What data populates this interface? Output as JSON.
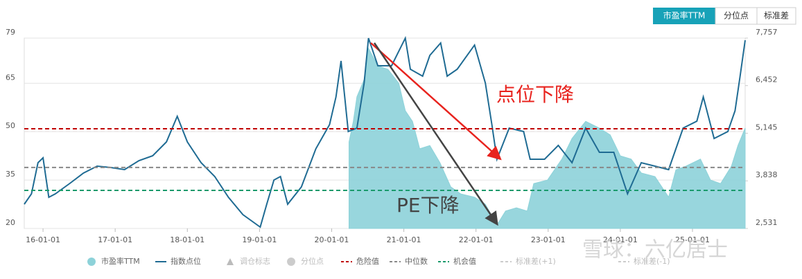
{
  "buttons": [
    "市盈率TTM",
    "分位点",
    "标准差"
  ],
  "watermark": "雪球：六亿居士",
  "chart_data": {
    "type": "line",
    "xlim": [
      2015.74,
      2025.73
    ],
    "xticks": [
      {
        "value": 2016,
        "label": "16-01-01"
      },
      {
        "value": 2017,
        "label": "17-01-01"
      },
      {
        "value": 2018,
        "label": "18-01-01"
      },
      {
        "value": 2019,
        "label": "19-01-01"
      },
      {
        "value": 2020,
        "label": "20-01-01"
      },
      {
        "value": 2021,
        "label": "21-01-01"
      },
      {
        "value": 2022,
        "label": "22-01-01"
      },
      {
        "value": 2023,
        "label": "23-01-01"
      },
      {
        "value": 2024,
        "label": "24-01-01"
      },
      {
        "value": 2025,
        "label": "25-01-01"
      }
    ],
    "ylim": [
      20,
      79
    ],
    "yticks": [
      20,
      35,
      50,
      65,
      79
    ],
    "y2lim": [
      2531,
      7757
    ],
    "y2ticks": [
      {
        "value": 2531,
        "label": "2,531"
      },
      {
        "value": 3838,
        "label": "3,838"
      },
      {
        "value": 5145,
        "label": "5,145"
      },
      {
        "value": 6452,
        "label": "6,452"
      },
      {
        "value": 7757,
        "label": "7,757"
      }
    ],
    "grid": true,
    "series": [
      {
        "name": "市盈率TTM",
        "kind": "area",
        "color": "#8dd2d9",
        "x": [
          2020.24,
          2020.3,
          2020.35,
          2020.45,
          2020.51,
          2020.64,
          2020.78,
          2020.93,
          2021.02,
          2021.12,
          2021.22,
          2021.36,
          2021.5,
          2021.65,
          2021.79,
          2021.98,
          2022.13,
          2022.29,
          2022.41,
          2022.56,
          2022.71,
          2022.8,
          2022.99,
          2023.19,
          2023.33,
          2023.52,
          2023.71,
          2023.86,
          2024.0,
          2024.15,
          2024.29,
          2024.48,
          2024.67,
          2024.77,
          2024.91,
          2025.11,
          2025.25,
          2025.39,
          2025.54,
          2025.63,
          2025.73
        ],
        "values": [
          46.8,
          53.2,
          60.8,
          66.1,
          75.8,
          70.4,
          69.3,
          65.0,
          56.5,
          53.2,
          44.7,
          45.7,
          40.4,
          32.9,
          30.7,
          29.7,
          27.5,
          21.1,
          25.4,
          26.4,
          25.4,
          33.9,
          35.0,
          41.5,
          47.9,
          53.2,
          51.1,
          49.0,
          42.5,
          41.5,
          37.2,
          36.1,
          29.7,
          38.2,
          39.3,
          41.5,
          35.0,
          33.9,
          39.3,
          45.7,
          51.1
        ]
      },
      {
        "name": "指数点位",
        "kind": "line",
        "axis": "y2",
        "color": "#1f6b93",
        "x": [
          2015.74,
          2015.84,
          2015.93,
          2016.0,
          2016.08,
          2016.17,
          2016.37,
          2016.56,
          2016.75,
          2016.94,
          2017.13,
          2017.33,
          2017.52,
          2017.71,
          2017.86,
          2018.0,
          2018.19,
          2018.38,
          2018.57,
          2018.77,
          2019.01,
          2019.1,
          2019.2,
          2019.29,
          2019.39,
          2019.58,
          2019.78,
          2019.97,
          2020.06,
          2020.13,
          2020.23,
          2020.35,
          2020.45,
          2020.51,
          2020.64,
          2020.83,
          2021.02,
          2021.09,
          2021.26,
          2021.36,
          2021.51,
          2021.6,
          2021.74,
          2021.98,
          2022.13,
          2022.22,
          2022.29,
          2022.46,
          2022.66,
          2022.75,
          2022.95,
          2023.14,
          2023.33,
          2023.52,
          2023.71,
          2023.91,
          2024.1,
          2024.29,
          2024.48,
          2024.67,
          2024.87,
          2025.06,
          2025.15,
          2025.3,
          2025.49,
          2025.59,
          2025.66,
          2025.73
        ],
        "values": [
          3196,
          3481,
          4336,
          4469,
          3386,
          3481,
          3766,
          4051,
          4241,
          4203,
          4146,
          4393,
          4526,
          4906,
          5609,
          4906,
          4336,
          3956,
          3386,
          2911,
          2569,
          3196,
          3861,
          3956,
          3196,
          3671,
          4716,
          5381,
          6141,
          7129,
          5191,
          5286,
          6521,
          7756,
          6996,
          6996,
          7756,
          6901,
          6711,
          7281,
          7623,
          6711,
          6901,
          7566,
          6521,
          5381,
          4431,
          5286,
          5191,
          4431,
          4431,
          4811,
          4336,
          5286,
          4621,
          4621,
          3481,
          4336,
          4241,
          4146,
          5286,
          5476,
          6141,
          5001,
          5191,
          5761,
          6711,
          7699
        ]
      }
    ],
    "reference_lines": [
      {
        "name": "危险值",
        "value": 50.9,
        "color": "#c00000"
      },
      {
        "name": "中位数",
        "value": 38.9,
        "color": "#888888"
      },
      {
        "name": "机会值",
        "value": 31.8,
        "color": "#1a9a6c"
      }
    ],
    "inactive_legend": [
      "调仓标志",
      "分位点",
      "标准差(+1)",
      "标准差(-1)"
    ],
    "annotations": [
      {
        "text": "点位下降",
        "color": "#e8231e"
      },
      {
        "text": "PE下降",
        "color": "#444444"
      }
    ]
  }
}
